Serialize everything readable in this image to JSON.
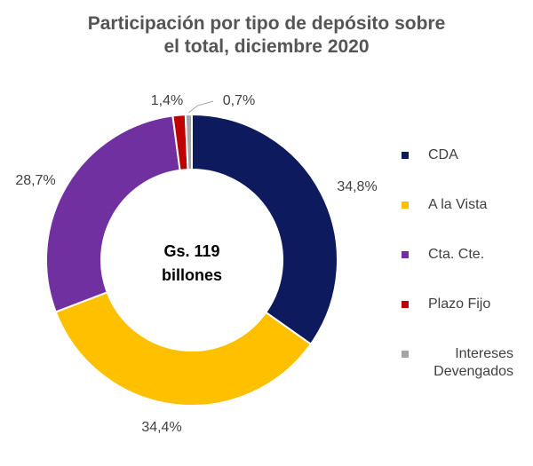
{
  "title_lines": [
    "Participación por tipo de depósito sobre",
    "el total, diciembre 2020"
  ],
  "chart_data": {
    "type": "pie",
    "title": "Participación por tipo de depósito sobre el total, diciembre 2020",
    "donut": true,
    "center_label": [
      "Gs. 119",
      "billones"
    ],
    "legend_position": "right",
    "slices": [
      {
        "name": "CDA",
        "value": 34.8,
        "label": "34,8%",
        "color": "#0d1b5e"
      },
      {
        "name": "A la Vista",
        "value": 34.4,
        "label": "34,4%",
        "color": "#ffc000"
      },
      {
        "name": "Cta. Cte.",
        "value": 28.7,
        "label": "28,7%",
        "color": "#7030a0"
      },
      {
        "name": "Plazo Fijo",
        "value": 1.4,
        "label": "1,4%",
        "color": "#c00000"
      },
      {
        "name": "Intereses Devengados",
        "value": 0.7,
        "label": "0,7%",
        "color": "#a6a6a6"
      }
    ]
  },
  "legend": [
    {
      "lines": [
        "CDA"
      ],
      "color": "#0d1b5e"
    },
    {
      "lines": [
        "A la Vista"
      ],
      "color": "#ffc000"
    },
    {
      "lines": [
        "Cta. Cte."
      ],
      "color": "#7030a0"
    },
    {
      "lines": [
        "Plazo Fijo"
      ],
      "color": "#c00000"
    },
    {
      "lines": [
        "Intereses",
        "Devengados"
      ],
      "color": "#a6a6a6"
    }
  ]
}
